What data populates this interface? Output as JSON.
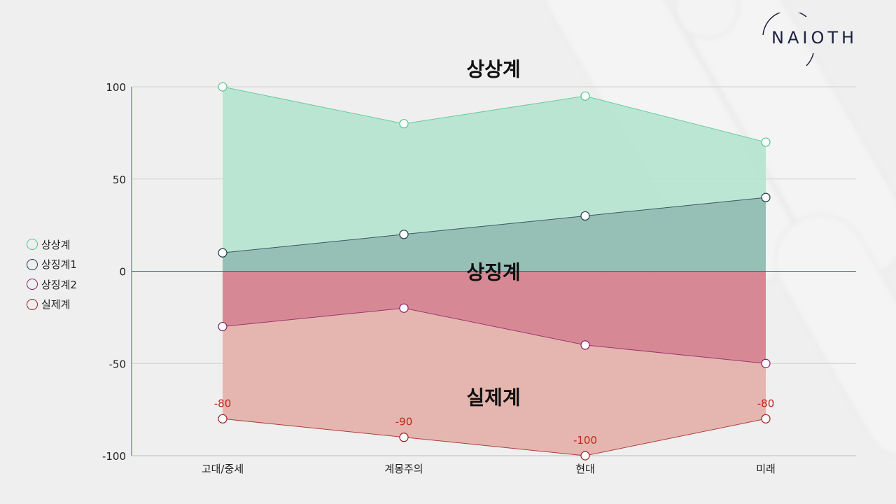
{
  "logo": {
    "text": "NAIOTH"
  },
  "chart_data": {
    "type": "area",
    "categories": [
      "고대/중세",
      "계몽주의",
      "현대",
      "미래"
    ],
    "yticks": [
      "100",
      "50",
      "0",
      "-50",
      "-100"
    ],
    "ylim": [
      -100,
      100
    ],
    "grid": true,
    "legend_position": "left",
    "series": [
      {
        "name": "상상계",
        "values": [
          100,
          80,
          95,
          70
        ],
        "color": "#4cc48e"
      },
      {
        "name": "상징계1",
        "values": [
          10,
          20,
          30,
          40
        ],
        "color": "#1f3b4a"
      },
      {
        "name": "상징계2",
        "values": [
          -30,
          -20,
          -40,
          -50
        ],
        "color": "#8b1a63"
      },
      {
        "name": "실제계",
        "values": [
          -80,
          -90,
          -100,
          -80
        ],
        "color": "#9c1b1b"
      }
    ],
    "data_labels": [
      "-80",
      "-90",
      "-100",
      "-80"
    ],
    "data_label_color": "#c0261a",
    "region_labels": [
      "상상계",
      "상징계",
      "실제계"
    ],
    "region_values": [
      110,
      0,
      -68
    ],
    "fills": {
      "imaginary": "#b5e4cf",
      "symbolic_upper": "#90bdb2",
      "symbolic_lower": "#d4838f",
      "real": "#e4b2ab"
    }
  }
}
